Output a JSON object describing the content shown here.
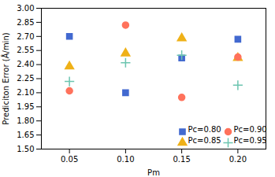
{
  "chart_data": {
    "type": "scatter",
    "x": [
      0.05,
      0.1,
      0.15,
      0.2
    ],
    "series": [
      {
        "name": "Pc=0.80",
        "marker": "square",
        "values": [
          2.7,
          2.1,
          2.47,
          2.67
        ]
      },
      {
        "name": "Pc=0.85",
        "marker": "triangle",
        "values": [
          2.38,
          2.52,
          2.68,
          2.47
        ]
      },
      {
        "name": "Pc=0.90",
        "marker": "circle",
        "values": [
          2.12,
          2.82,
          2.05,
          2.48
        ]
      },
      {
        "name": "Pc=0.95",
        "marker": "plus",
        "values": [
          2.22,
          2.42,
          2.5,
          2.18
        ]
      }
    ],
    "xlabel": "Pm",
    "ylabel": "Prediciton Error (Å/min)",
    "xlim": [
      0.025,
      0.225
    ],
    "ylim": [
      1.5,
      3.0
    ],
    "xticks": [
      0.05,
      {
        "value": 0.1,
        "label": "0.10"
      },
      0.15,
      {
        "value": 0.2,
        "label": "0.20"
      }
    ],
    "yticks": [
      {
        "value": 1.5,
        "label": "1.50"
      },
      1.65,
      {
        "value": 1.8,
        "label": "1.80"
      },
      1.95,
      {
        "value": 2.1,
        "label": "2.10"
      },
      2.25,
      {
        "value": 2.4,
        "label": "2.40"
      },
      2.55,
      {
        "value": 2.7,
        "label": "2.70"
      },
      2.85,
      {
        "value": 3.0,
        "label": "3.00"
      }
    ],
    "legend": "lower right"
  }
}
